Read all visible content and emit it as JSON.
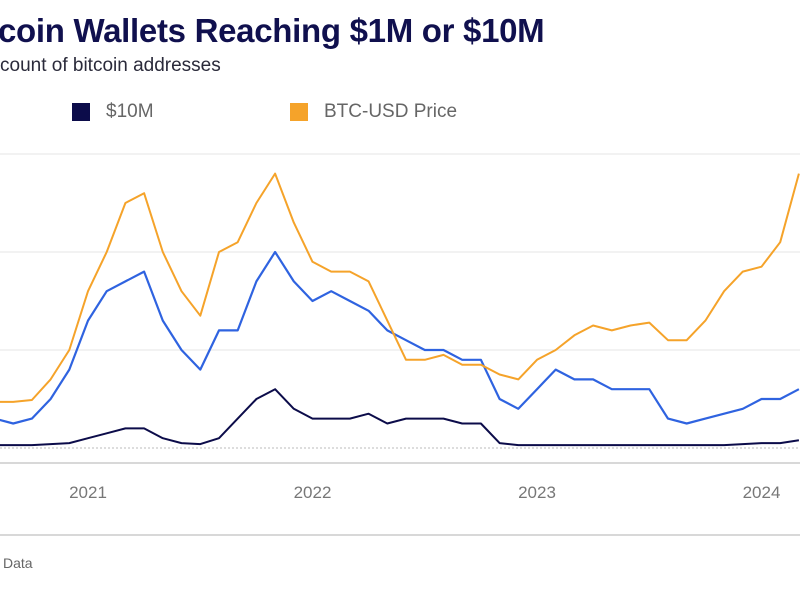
{
  "chart_data": {
    "type": "line",
    "title": "coin Wallets Reaching $1M or $10M",
    "subtitle": "count of bitcoin addresses",
    "x_ticks": [
      "2021",
      "2022",
      "2023",
      "2024"
    ],
    "x_range": [
      "2020-08",
      "2024-03"
    ],
    "grid": true,
    "legend_position": "top",
    "x": [
      "2020-08",
      "2020-09",
      "2020-10",
      "2020-11",
      "2020-12",
      "2021-01",
      "2021-02",
      "2021-03",
      "2021-04",
      "2021-05",
      "2021-06",
      "2021-07",
      "2021-08",
      "2021-09",
      "2021-10",
      "2021-11",
      "2021-12",
      "2022-01",
      "2022-02",
      "2022-03",
      "2022-04",
      "2022-05",
      "2022-06",
      "2022-07",
      "2022-08",
      "2022-09",
      "2022-10",
      "2022-11",
      "2022-12",
      "2023-01",
      "2023-02",
      "2023-03",
      "2023-04",
      "2023-05",
      "2023-06",
      "2023-07",
      "2023-08",
      "2023-09",
      "2023-10",
      "2023-11",
      "2023-12",
      "2024-01",
      "2024-02",
      "2024-03"
    ],
    "series": [
      {
        "color": "#2f63e0",
        "values": [
          0.3,
          0.25,
          0.3,
          0.5,
          0.8,
          1.3,
          1.6,
          1.7,
          1.8,
          1.3,
          1.0,
          0.8,
          1.2,
          1.2,
          1.7,
          2.0,
          1.7,
          1.5,
          1.6,
          1.5,
          1.4,
          1.2,
          1.1,
          1.0,
          1.0,
          0.9,
          0.9,
          0.5,
          0.4,
          0.6,
          0.8,
          0.7,
          0.7,
          0.6,
          0.6,
          0.6,
          0.3,
          0.25,
          0.3,
          0.35,
          0.4,
          0.5,
          0.5,
          0.6
        ]
      },
      {
        "name": "$10M",
        "color": "#0c0c4a",
        "values": [
          0.03,
          0.03,
          0.03,
          0.04,
          0.05,
          0.1,
          0.15,
          0.2,
          0.2,
          0.1,
          0.05,
          0.04,
          0.1,
          0.3,
          0.5,
          0.6,
          0.4,
          0.3,
          0.3,
          0.3,
          0.35,
          0.25,
          0.3,
          0.3,
          0.3,
          0.25,
          0.25,
          0.05,
          0.03,
          0.03,
          0.03,
          0.03,
          0.03,
          0.03,
          0.03,
          0.03,
          0.03,
          0.03,
          0.03,
          0.03,
          0.04,
          0.05,
          0.05,
          0.08
        ]
      },
      {
        "name": "BTC-USD Price",
        "color": "#f5a32a",
        "values": [
          0.47,
          0.47,
          0.49,
          0.7,
          1.0,
          1.6,
          2.0,
          2.5,
          2.6,
          2.0,
          1.6,
          1.35,
          2.0,
          2.1,
          2.5,
          2.8,
          2.3,
          1.9,
          1.8,
          1.8,
          1.7,
          1.3,
          0.9,
          0.9,
          0.95,
          0.85,
          0.85,
          0.75,
          0.7,
          0.9,
          1.0,
          1.15,
          1.25,
          1.2,
          1.25,
          1.28,
          1.1,
          1.1,
          1.3,
          1.6,
          1.8,
          1.85,
          2.1,
          2.8
        ]
      }
    ]
  },
  "legend": [
    {
      "label": "$10M",
      "color": "#0c0c4a"
    },
    {
      "label": "BTC-USD Price",
      "color": "#f5a32a"
    }
  ],
  "footer": "Data"
}
